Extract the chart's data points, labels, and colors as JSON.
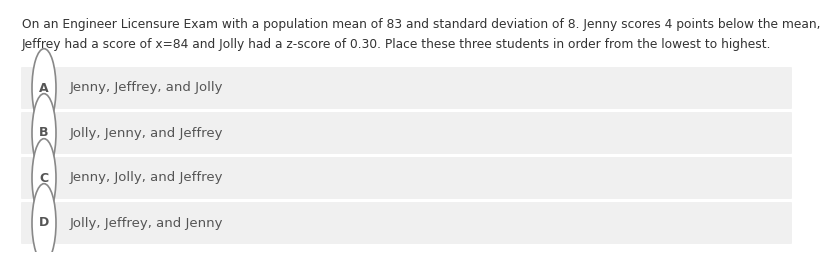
{
  "background_color": "#ffffff",
  "question_text_line1": "On an Engineer Licensure Exam with a population mean of 83 and standard deviation of 8. Jenny scores 4 points below the mean,",
  "question_text_line2": "Jeffrey had a score of x=84 and Jolly had a z-score of 0.30. Place these three students in order from the lowest to highest.",
  "options": [
    {
      "label": "A",
      "text": "Jenny, Jeffrey, and Jolly"
    },
    {
      "label": "B",
      "text": "Jolly, Jenny, and Jeffrey"
    },
    {
      "label": "C",
      "text": "Jenny, Jolly, and Jeffrey"
    },
    {
      "label": "D",
      "text": "Jolly, Jeffrey, and Jenny"
    }
  ],
  "option_bg_color": "#f0f0f0",
  "option_text_color": "#555555",
  "question_text_color": "#333333",
  "circle_edge_color": "#888888",
  "circle_face_color": "#ffffff",
  "font_size_question": 8.8,
  "font_size_option": 9.5,
  "font_size_label": 9.0
}
